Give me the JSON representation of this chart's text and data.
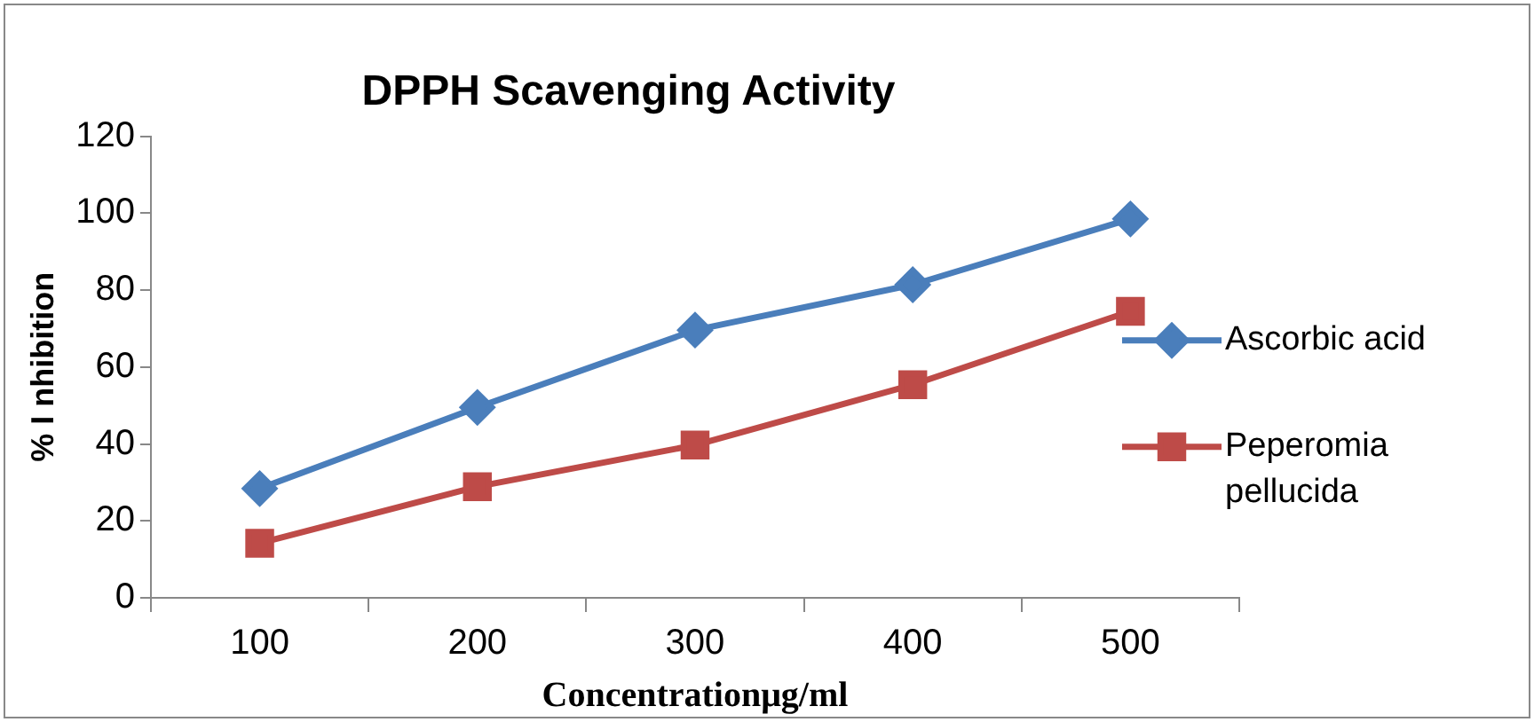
{
  "chart_data": {
    "type": "line",
    "title": "DPPH Scavenging Activity",
    "xlabel": "Concentrationμg/ml",
    "ylabel": "% I nhibition",
    "categories": [
      "100",
      "200",
      "300",
      "400",
      "500"
    ],
    "series": [
      {
        "name": "Ascorbic acid",
        "color": "#4a7ebb",
        "marker": "diamond",
        "values": [
          28.4,
          49.5,
          69.6,
          81.4,
          98.5
        ]
      },
      {
        "name": "Peperomia pellucida",
        "color": "#be4b48",
        "marker": "square",
        "values": [
          14.2,
          28.9,
          39.7,
          55.4,
          74.5
        ]
      }
    ],
    "ylim": [
      0,
      120
    ],
    "yticks": [
      0,
      20,
      40,
      60,
      80,
      100,
      120
    ],
    "grid": false,
    "legend": "right",
    "line_style": "solid"
  }
}
